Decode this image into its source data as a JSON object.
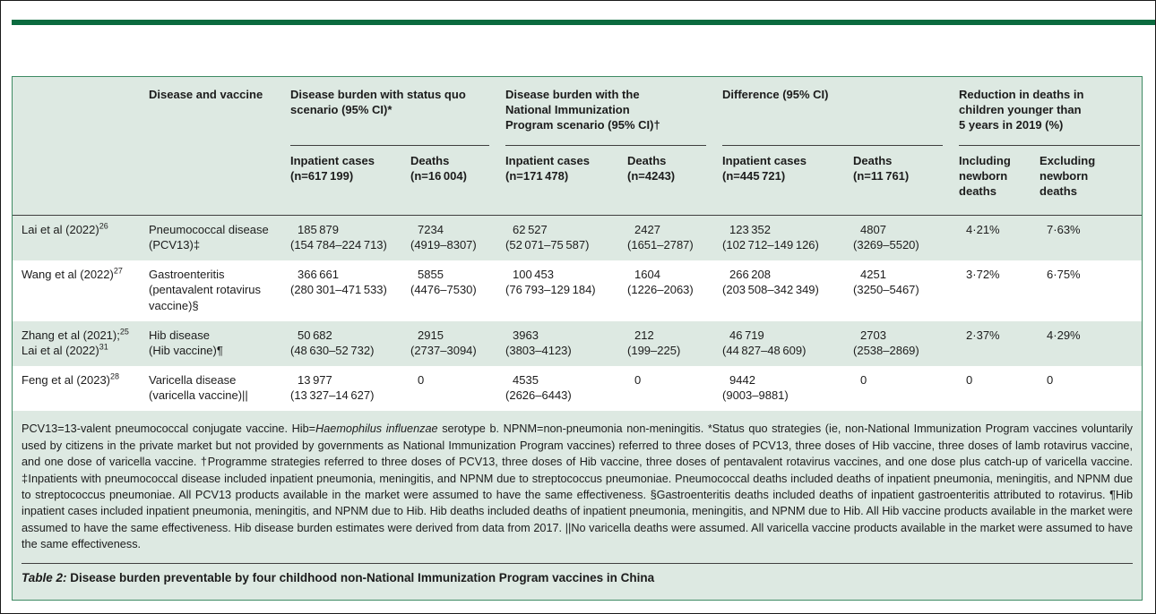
{
  "colors": {
    "accent_green": "#0b6b3f",
    "mint_background": "#dde9e2",
    "panel_border": "#3e8a63",
    "rule": "#3f3f3f"
  },
  "header": {
    "disease_vaccine": "Disease and vaccine",
    "groups": [
      "Disease burden with status quo\nscenario (95% CI)*",
      "Disease burden with the\nNational Immunization\nProgram scenario (95% CI)†",
      "Difference (95% CI)",
      "Reduction in deaths in\nchildren younger than\n5 years in 2019 (%)"
    ],
    "sub": [
      "Inpatient cases\n(n=617 199)",
      "Deaths\n(n=16 004)",
      "Inpatient cases\n(n=171 478)",
      "Deaths\n(n=4243)",
      "Inpatient cases\n(n=445 721)",
      "Deaths\n(n=11 761)",
      "Including\nnewborn\ndeaths",
      "Excluding\nnewborn\ndeaths"
    ]
  },
  "rows": [
    {
      "study": [
        {
          "text": "Lai et al (2022)",
          "ref": "26"
        }
      ],
      "disease": "Pneumococcal disease\n(PCV13)‡",
      "cells": [
        {
          "v": "185 879",
          "ci": "(154 784–224 713)"
        },
        {
          "v": "7234",
          "ci": "(4919–8307)"
        },
        {
          "v": "62 527",
          "ci": "(52 071–75 587)"
        },
        {
          "v": "2427",
          "ci": "(1651–2787)"
        },
        {
          "v": "123 352",
          "ci": "(102 712–149 126)"
        },
        {
          "v": "4807",
          "ci": "(3269–5520)"
        },
        {
          "v": "4·21%",
          "ci": ""
        },
        {
          "v": "7·63%",
          "ci": ""
        }
      ]
    },
    {
      "study": [
        {
          "text": "Wang et al (2022)",
          "ref": "27"
        }
      ],
      "disease": "Gastroenteritis\n(pentavalent rotavirus\nvaccine)§",
      "cells": [
        {
          "v": "366 661",
          "ci": "(280 301–471 533)"
        },
        {
          "v": "5855",
          "ci": "(4476–7530)"
        },
        {
          "v": "100 453",
          "ci": "(76 793–129 184)"
        },
        {
          "v": "1604",
          "ci": "(1226–2063)"
        },
        {
          "v": "266 208",
          "ci": "(203 508–342 349)"
        },
        {
          "v": "4251",
          "ci": "(3250–5467)"
        },
        {
          "v": "3·72%",
          "ci": ""
        },
        {
          "v": "6·75%",
          "ci": ""
        }
      ]
    },
    {
      "study": [
        {
          "text": "Zhang et al (2021);",
          "ref": "25"
        },
        {
          "text": "Lai et al (2022)",
          "ref": "31"
        }
      ],
      "disease": "Hib disease\n(Hib vaccine)¶",
      "cells": [
        {
          "v": "50 682",
          "ci": "(48 630–52 732)"
        },
        {
          "v": "2915",
          "ci": "(2737–3094)"
        },
        {
          "v": "3963",
          "ci": "(3803–4123)"
        },
        {
          "v": "212",
          "ci": "(199–225)"
        },
        {
          "v": "46 719",
          "ci": "(44 827–48 609)"
        },
        {
          "v": "2703",
          "ci": "(2538–2869)"
        },
        {
          "v": "2·37%",
          "ci": ""
        },
        {
          "v": "4·29%",
          "ci": ""
        }
      ]
    },
    {
      "study": [
        {
          "text": "Feng et al (2023)",
          "ref": "28"
        }
      ],
      "disease": "Varicella disease\n(varicella vaccine)||",
      "cells": [
        {
          "v": "13 977",
          "ci": "(13 327–14 627)"
        },
        {
          "v": "0",
          "ci": ""
        },
        {
          "v": "4535",
          "ci": "(2626–6443)"
        },
        {
          "v": "0",
          "ci": ""
        },
        {
          "v": "9442",
          "ci": "(9003–9881)"
        },
        {
          "v": "0",
          "ci": ""
        },
        {
          "v": "0",
          "ci": ""
        },
        {
          "v": "0",
          "ci": ""
        }
      ]
    }
  ],
  "footnotes": {
    "part1": "PCV13=13-valent pneumococcal conjugate vaccine. Hib=",
    "italic1": "Haemophilus influenzae",
    "part2": " serotype b. NPNM=non-pneumonia non-meningitis. *Status quo strategies (ie, non-National Immunization Program vaccines voluntarily used by citizens in the private market but not provided by governments as National Immunization Program vaccines) referred to three doses of PCV13, three doses of Hib vaccine, three doses of lamb rotavirus vaccine, and one dose of varicella vaccine. †Programme strategies referred to three doses of PCV13, three doses of Hib vaccine, three doses of pentavalent rotavirus vaccines, and one dose plus catch-up of varicella vaccine. ‡Inpatients with pneumococcal disease included inpatient pneumonia, meningitis, and NPNM due to streptococcus pneumoniae. Pneumococcal deaths included deaths of inpatient pneumonia, meningitis, and NPNM due to streptococcus pneumoniae. All PCV13 products available in the market were assumed to have the same effectiveness. §Gastroenteritis deaths included deaths of inpatient gastroenteritis attributed to rotavirus. ¶Hib inpatient cases included inpatient pneumonia, meningitis, and NPNM due to Hib. Hib deaths included deaths of inpatient pneumonia, meningitis, and NPNM due to Hib. All Hib vaccine products available in the market were assumed to have the same effectiveness. Hib disease burden estimates were derived from data from 2017. ||No varicella deaths were assumed. All varicella vaccine products available in the market were assumed to have the same effectiveness."
  },
  "caption": {
    "label": "Table 2:",
    "text": " Disease burden preventable by four childhood non-National Immunization Program vaccines in China"
  }
}
